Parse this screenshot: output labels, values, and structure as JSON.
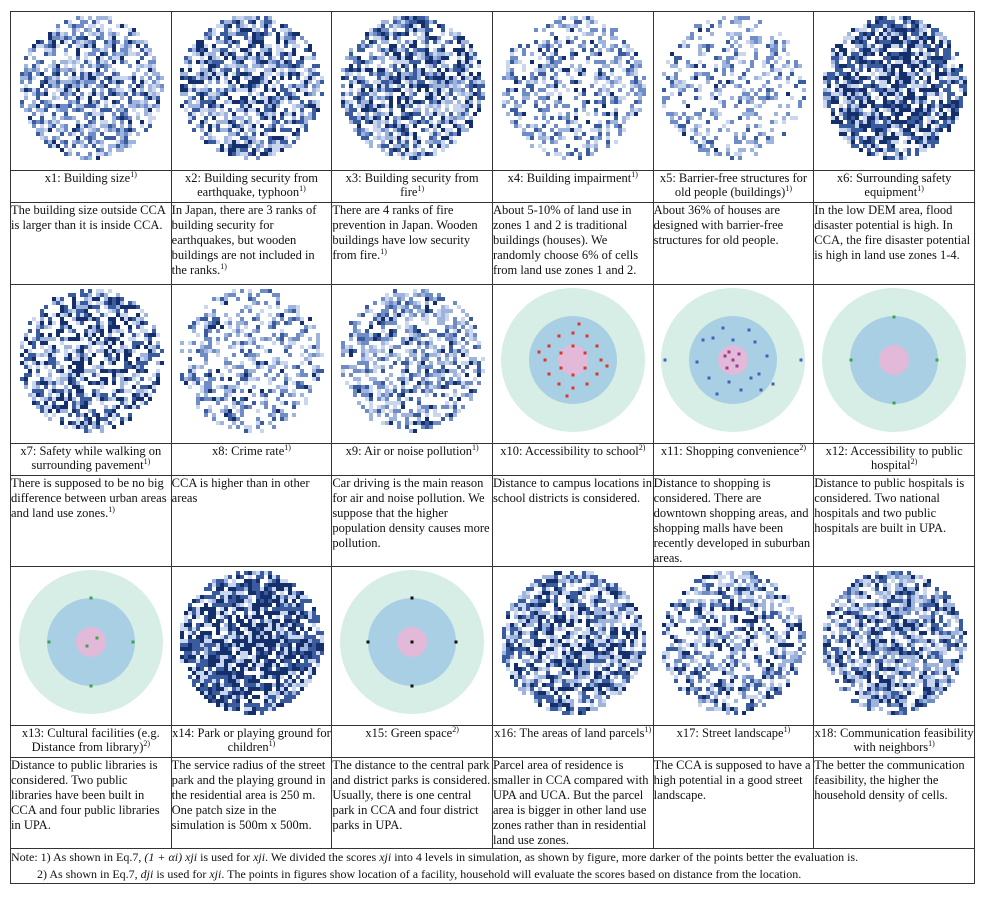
{
  "rows": [
    {
      "cells": [
        {
          "kind": "scatter",
          "seed": 11,
          "density": 0.62,
          "dark": 0.15,
          "caption": "x1: Building size",
          "sup": "1)",
          "desc": "The building size outside CCA is larger than it is inside CCA."
        },
        {
          "kind": "scatter",
          "seed": 22,
          "density": 0.68,
          "dark": 0.35,
          "caption": "x2: Building security from earthquake, typhoon",
          "sup": "1)",
          "desc": "In Japan, there are 3 ranks of building security for earthquakes, but wooden buildings are not included in the ranks.",
          "desc_sup": "1)"
        },
        {
          "kind": "scatter",
          "seed": 33,
          "density": 0.72,
          "dark": 0.3,
          "caption": "x3: Building security from fire",
          "sup": "1)",
          "desc": "There are 4 ranks of fire prevention in Japan. Wooden buildings have low security from fire.",
          "desc_sup": "1)"
        },
        {
          "kind": "scatter",
          "seed": 44,
          "density": 0.45,
          "dark": 0.12,
          "caption": "x4: Building impairment",
          "sup": "1)",
          "desc": "About 5-10% of land use in zones 1 and 2 is traditional buildings (houses). We randomly choose 6% of cells from land use zones 1 and 2."
        },
        {
          "kind": "scatter",
          "seed": 55,
          "density": 0.35,
          "dark": 0.05,
          "caption": "x5: Barrier-free structures for old people (buildings)",
          "sup": "1)",
          "desc": "About 36% of houses are designed with barrier-free structures for old people."
        },
        {
          "kind": "scatter",
          "seed": 66,
          "density": 0.78,
          "dark": 0.55,
          "caption": "x6: Surrounding safety equipment",
          "sup": "1)",
          "desc": "In the low DEM area, flood disaster potential is high. In CCA, the fire disaster potential is high in land use zones 1-4."
        }
      ]
    },
    {
      "cells": [
        {
          "kind": "scatter",
          "seed": 77,
          "density": 0.6,
          "dark": 0.45,
          "caption": "x7: Safety while walking on surrounding pavement",
          "sup": "1)",
          "desc": "There is supposed to be no big difference between urban areas and land use zones.",
          "desc_sup": "1)"
        },
        {
          "kind": "scatter",
          "seed": 88,
          "density": 0.42,
          "dark": 0.1,
          "caption": "x8: Crime rate",
          "sup": "1)",
          "desc": "CCA is higher than in other areas"
        },
        {
          "kind": "scatter",
          "seed": 99,
          "density": 0.55,
          "dark": 0.12,
          "caption": "x9: Air or noise pollution",
          "sup": "1)",
          "desc": "Car driving is the main reason for air and noise pollution. We suppose that the higher population density causes more pollution."
        },
        {
          "kind": "rings",
          "variant": "school",
          "caption": "x10: Accessibility to school",
          "sup": "2)",
          "desc": "Distance to campus locations in school districts is considered."
        },
        {
          "kind": "rings",
          "variant": "shop",
          "caption": "x11: Shopping convenience",
          "sup": "2)",
          "desc": "Distance to shopping is considered. There are downtown shopping areas, and shopping malls have been recently developed in suburban areas."
        },
        {
          "kind": "rings",
          "variant": "hospital",
          "caption": "x12: Accessibility to public hospital",
          "sup": "2)",
          "desc": "Distance to public hospitals is considered. Two national hospitals and two public hospitals are built in UPA."
        }
      ]
    },
    {
      "cells": [
        {
          "kind": "rings",
          "variant": "library",
          "caption": "x13: Cultural facilities (e.g. Distance from library)",
          "sup": "2)",
          "desc": "Distance to public libraries is considered. Two public libraries have been built in CCA and four public libraries in UPA."
        },
        {
          "kind": "scatter",
          "seed": 111,
          "density": 0.82,
          "dark": 0.6,
          "caption": "x14: Park or playing ground for children",
          "sup": "1)",
          "desc": "The service radius of the street park and the playing ground in the residential area is 250 m. One patch size in the simulation is 500m x 500m."
        },
        {
          "kind": "rings",
          "variant": "green",
          "caption": "x15: Green space",
          "sup": "2)",
          "desc": "The distance to the central park and district parks is considered. Usually, there is one central park in CCA and four district parks in UPA."
        },
        {
          "kind": "scatter",
          "seed": 133,
          "density": 0.75,
          "dark": 0.4,
          "caption": "x16: The areas of land parcels",
          "sup": "1)",
          "desc": "Parcel area of residence is smaller in CCA compared with UPA and UCA. But the parcel area is bigger in other land use zones rather than in residential land use zones."
        },
        {
          "kind": "scatter",
          "seed": 144,
          "density": 0.55,
          "dark": 0.25,
          "caption": "x17: Street landscape",
          "sup": "1)",
          "desc": "The CCA is supposed to have a high potential in a good street landscape."
        },
        {
          "kind": "scatter",
          "seed": 155,
          "density": 0.7,
          "dark": 0.3,
          "caption": "x18: Communication feasibility with neighbors",
          "sup": "1)",
          "desc": "The better the communication feasibility, the higher the household density of cells."
        }
      ]
    }
  ],
  "note": {
    "line1_a": "Note: 1) As shown in Eq.7, ",
    "line1_formula": "(1 + αi) xji",
    "line1_b": " is used for ",
    "line1_var": "xji",
    "line1_c": ". We divided the scores ",
    "line1_var2": "xji",
    "line1_d": " into 4 levels in simulation, as shown by figure, more darker of the points better the evaluation is.",
    "line2_a": "2) As shown in Eq.7, ",
    "line2_formula": "dji",
    "line2_b": " is used for ",
    "line2_var": "xji",
    "line2_c": ". The points in figures show location of a facility, household will evaluate the scores based on distance from the location."
  }
}
